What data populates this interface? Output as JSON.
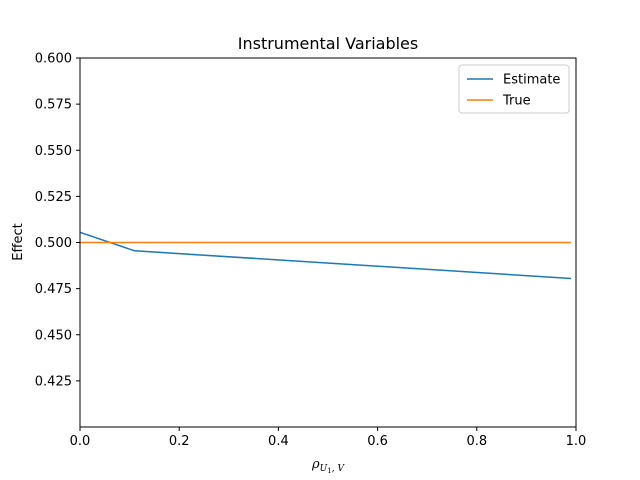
{
  "chart_data": {
    "type": "line",
    "title": "Instrumental Variables",
    "ylabel": "Effect",
    "xlabel": {
      "main": "ρ",
      "sub_var": "U",
      "sub_index": "1",
      "sub_rest": ", V"
    },
    "xlim": [
      0.0,
      1.0
    ],
    "ylim": [
      0.4,
      0.6
    ],
    "xticks": [
      "0.0",
      "0.2",
      "0.4",
      "0.6",
      "0.8",
      "1.0"
    ],
    "yticks": [
      "0.425",
      "0.450",
      "0.475",
      "0.500",
      "0.525",
      "0.550",
      "0.575",
      "0.600"
    ],
    "grid": false,
    "legend_position": "top-right",
    "series": [
      {
        "name": "Estimate",
        "color": "#1f77b4",
        "x": [
          0.0,
          0.11,
          0.99
        ],
        "y": [
          0.5055,
          0.4955,
          0.4805
        ]
      },
      {
        "name": "True",
        "color": "#ff7f0e",
        "x": [
          0.0,
          0.99
        ],
        "y": [
          0.5,
          0.5
        ]
      }
    ]
  }
}
